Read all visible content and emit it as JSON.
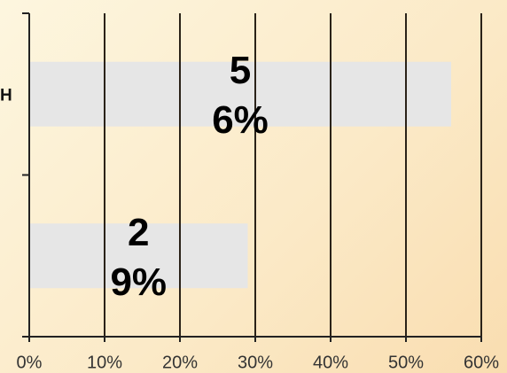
{
  "chart_data": {
    "type": "bar",
    "orientation": "horizontal",
    "categories": [
      "H",
      null
    ],
    "values": [
      56,
      29
    ],
    "value_labels": [
      "56%",
      "29%"
    ],
    "color": "#e6e6e6",
    "xlim": [
      0,
      60
    ],
    "xticks": [
      {
        "value": 0,
        "label": "0%"
      },
      {
        "value": 10,
        "label": "10%"
      },
      {
        "value": 20,
        "label": "20%"
      },
      {
        "value": 30,
        "label": "30%"
      },
      {
        "value": 40,
        "label": "40%"
      },
      {
        "value": 50,
        "label": "50%"
      },
      {
        "value": 60,
        "label": "60%"
      }
    ],
    "grid": true
  }
}
